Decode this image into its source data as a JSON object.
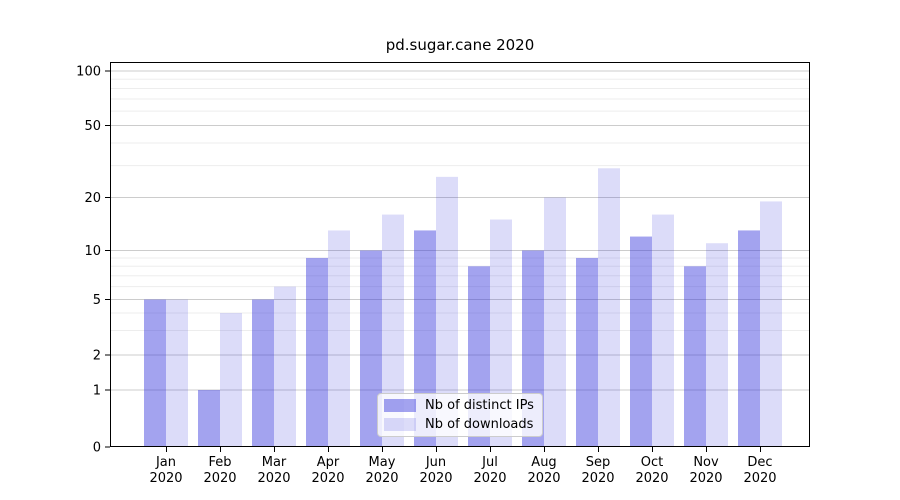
{
  "figure": {
    "background": "#ffffff"
  },
  "chart_data": {
    "type": "bar",
    "title": "pd.sugar.cane 2020",
    "categories": [
      "Jan 2020",
      "Feb 2020",
      "Mar 2020",
      "Apr 2020",
      "May 2020",
      "Jun 2020",
      "Jul 2020",
      "Aug 2020",
      "Sep 2020",
      "Oct 2020",
      "Nov 2020",
      "Dec 2020"
    ],
    "series": [
      {
        "name": "Nb of distinct IPs",
        "color": "rgba(50,50,220,0.45)",
        "values": [
          5,
          1,
          5,
          9,
          10,
          13,
          8,
          10,
          9,
          12,
          8,
          13
        ]
      },
      {
        "name": "Nb of downloads",
        "color": "rgba(50,50,220,0.17)",
        "values": [
          5,
          4,
          6,
          13,
          16,
          26,
          15,
          20,
          29,
          16,
          11,
          19
        ]
      }
    ],
    "xlabel": "",
    "ylabel": "",
    "yscale": "symlog",
    "ylim": [
      0,
      100
    ],
    "yticks": [
      0,
      1,
      2,
      5,
      10,
      20,
      50,
      100
    ],
    "yticks_minor": [
      3,
      4,
      6,
      7,
      8,
      9,
      30,
      40,
      60,
      70,
      80,
      90
    ],
    "grid": true,
    "legend_position": "lower center",
    "colors": {
      "grid_major": "#cccccc",
      "grid_minor": "#ededed",
      "axis": "#000000",
      "text": "#000000"
    }
  }
}
